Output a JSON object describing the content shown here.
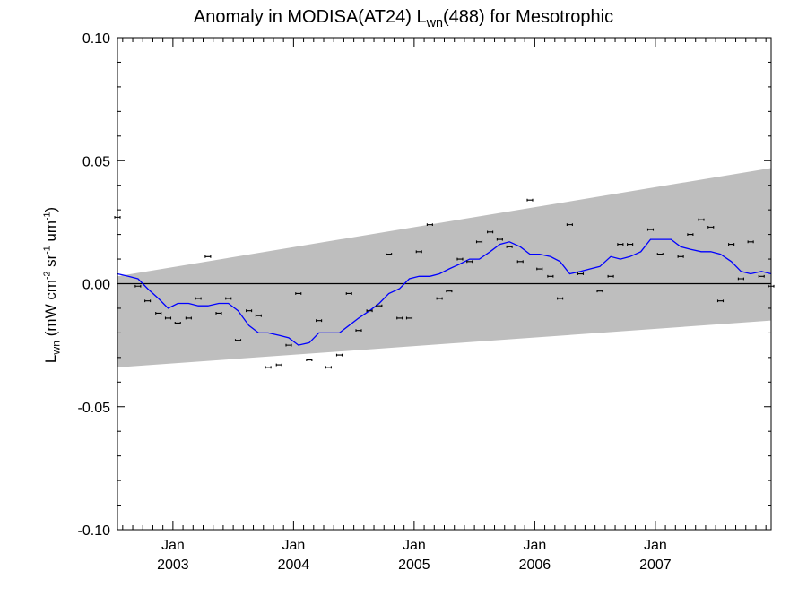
{
  "title": {
    "pre": "Anomaly in MODISA(AT24) L",
    "sub": "wn",
    "post": "(488) for Mesotrophic"
  },
  "y_axis_label": {
    "symbol": "L",
    "symbol_sub": "wn",
    "open": "(mW cm",
    "sup1": "-2",
    "sr": "sr",
    "sup2": "-1",
    "um": "um",
    "sup3": "-1",
    "close": ")"
  },
  "colors": {
    "envelope": "#bebebe",
    "smoothed_line": "#0000ff",
    "points": "#000000",
    "zero_line": "#000000"
  },
  "chart_data": {
    "type": "scatter",
    "ylim": [
      -0.1,
      0.1
    ],
    "yticks": [
      -0.1,
      -0.05,
      0.0,
      0.05,
      0.1
    ],
    "ytick_labels": [
      "-0.10",
      "-0.05",
      "0.00",
      "0.05",
      "0.10"
    ],
    "xlim": [
      2002.54,
      2007.96
    ],
    "xticks": [
      {
        "x": 2003.0,
        "month": "Jan",
        "year": "2003"
      },
      {
        "x": 2004.0,
        "month": "Jan",
        "year": "2004"
      },
      {
        "x": 2005.0,
        "month": "Jan",
        "year": "2005"
      },
      {
        "x": 2006.0,
        "month": "Jan",
        "year": "2006"
      },
      {
        "x": 2007.0,
        "month": "Jan",
        "year": "2007"
      }
    ],
    "envelope": {
      "upper": [
        [
          2002.54,
          0.003
        ],
        [
          2007.96,
          0.047
        ]
      ],
      "lower": [
        [
          2002.54,
          -0.034
        ],
        [
          2007.96,
          -0.015
        ]
      ]
    },
    "zero_line": 0.0,
    "points": [
      [
        2002.54,
        0.027
      ],
      [
        2002.71,
        -0.001
      ],
      [
        2002.79,
        -0.007
      ],
      [
        2002.88,
        -0.012
      ],
      [
        2002.96,
        -0.014
      ],
      [
        2003.04,
        -0.016
      ],
      [
        2003.13,
        -0.014
      ],
      [
        2003.21,
        -0.006
      ],
      [
        2003.29,
        0.011
      ],
      [
        2003.38,
        -0.012
      ],
      [
        2003.46,
        -0.006
      ],
      [
        2003.54,
        -0.023
      ],
      [
        2003.63,
        -0.011
      ],
      [
        2003.71,
        -0.013
      ],
      [
        2003.79,
        -0.034
      ],
      [
        2003.88,
        -0.033
      ],
      [
        2003.96,
        -0.025
      ],
      [
        2004.04,
        -0.004
      ],
      [
        2004.13,
        -0.031
      ],
      [
        2004.21,
        -0.015
      ],
      [
        2004.29,
        -0.034
      ],
      [
        2004.38,
        -0.029
      ],
      [
        2004.46,
        -0.004
      ],
      [
        2004.54,
        -0.019
      ],
      [
        2004.63,
        -0.011
      ],
      [
        2004.71,
        -0.009
      ],
      [
        2004.79,
        0.012
      ],
      [
        2004.96,
        -0.014
      ],
      [
        2004.88,
        -0.014
      ],
      [
        2005.04,
        0.013
      ],
      [
        2005.13,
        0.024
      ],
      [
        2005.21,
        -0.006
      ],
      [
        2005.29,
        -0.003
      ],
      [
        2005.38,
        0.01
      ],
      [
        2005.46,
        0.009
      ],
      [
        2005.54,
        0.017
      ],
      [
        2005.63,
        0.021
      ],
      [
        2005.71,
        0.018
      ],
      [
        2005.79,
        0.015
      ],
      [
        2005.88,
        0.009
      ],
      [
        2005.96,
        0.034
      ],
      [
        2006.04,
        0.006
      ],
      [
        2006.13,
        0.003
      ],
      [
        2006.21,
        -0.006
      ],
      [
        2006.29,
        0.024
      ],
      [
        2006.38,
        0.004
      ],
      [
        2006.54,
        -0.003
      ],
      [
        2006.63,
        0.003
      ],
      [
        2006.71,
        0.016
      ],
      [
        2006.79,
        0.016
      ],
      [
        2006.96,
        0.022
      ],
      [
        2007.04,
        0.012
      ],
      [
        2007.21,
        0.011
      ],
      [
        2007.29,
        0.02
      ],
      [
        2007.38,
        0.026
      ],
      [
        2007.46,
        0.023
      ],
      [
        2007.54,
        -0.007
      ],
      [
        2007.63,
        0.016
      ],
      [
        2007.71,
        0.002
      ],
      [
        2007.79,
        0.017
      ],
      [
        2007.88,
        0.003
      ],
      [
        2007.96,
        -0.001
      ]
    ],
    "smoothed": [
      [
        2002.54,
        0.004
      ],
      [
        2002.63,
        0.003
      ],
      [
        2002.71,
        0.002
      ],
      [
        2002.79,
        -0.002
      ],
      [
        2002.88,
        -0.006
      ],
      [
        2002.96,
        -0.01
      ],
      [
        2003.04,
        -0.008
      ],
      [
        2003.13,
        -0.008
      ],
      [
        2003.21,
        -0.009
      ],
      [
        2003.29,
        -0.009
      ],
      [
        2003.38,
        -0.008
      ],
      [
        2003.46,
        -0.008
      ],
      [
        2003.54,
        -0.011
      ],
      [
        2003.63,
        -0.017
      ],
      [
        2003.71,
        -0.02
      ],
      [
        2003.79,
        -0.02
      ],
      [
        2003.88,
        -0.021
      ],
      [
        2003.96,
        -0.022
      ],
      [
        2004.04,
        -0.025
      ],
      [
        2004.13,
        -0.024
      ],
      [
        2004.21,
        -0.02
      ],
      [
        2004.29,
        -0.02
      ],
      [
        2004.38,
        -0.02
      ],
      [
        2004.46,
        -0.017
      ],
      [
        2004.54,
        -0.014
      ],
      [
        2004.63,
        -0.011
      ],
      [
        2004.71,
        -0.008
      ],
      [
        2004.79,
        -0.004
      ],
      [
        2004.88,
        -0.002
      ],
      [
        2004.96,
        0.002
      ],
      [
        2005.04,
        0.003
      ],
      [
        2005.13,
        0.003
      ],
      [
        2005.21,
        0.004
      ],
      [
        2005.29,
        0.006
      ],
      [
        2005.38,
        0.008
      ],
      [
        2005.46,
        0.01
      ],
      [
        2005.54,
        0.01
      ],
      [
        2005.63,
        0.013
      ],
      [
        2005.71,
        0.016
      ],
      [
        2005.79,
        0.017
      ],
      [
        2005.88,
        0.015
      ],
      [
        2005.96,
        0.012
      ],
      [
        2006.04,
        0.012
      ],
      [
        2006.13,
        0.011
      ],
      [
        2006.21,
        0.009
      ],
      [
        2006.29,
        0.004
      ],
      [
        2006.38,
        0.005
      ],
      [
        2006.46,
        0.006
      ],
      [
        2006.54,
        0.007
      ],
      [
        2006.63,
        0.011
      ],
      [
        2006.71,
        0.01
      ],
      [
        2006.79,
        0.011
      ],
      [
        2006.88,
        0.013
      ],
      [
        2006.96,
        0.018
      ],
      [
        2007.04,
        0.018
      ],
      [
        2007.13,
        0.018
      ],
      [
        2007.21,
        0.015
      ],
      [
        2007.29,
        0.014
      ],
      [
        2007.38,
        0.013
      ],
      [
        2007.46,
        0.013
      ],
      [
        2007.54,
        0.012
      ],
      [
        2007.63,
        0.009
      ],
      [
        2007.71,
        0.005
      ],
      [
        2007.79,
        0.004
      ],
      [
        2007.88,
        0.005
      ],
      [
        2007.96,
        0.004
      ]
    ]
  }
}
